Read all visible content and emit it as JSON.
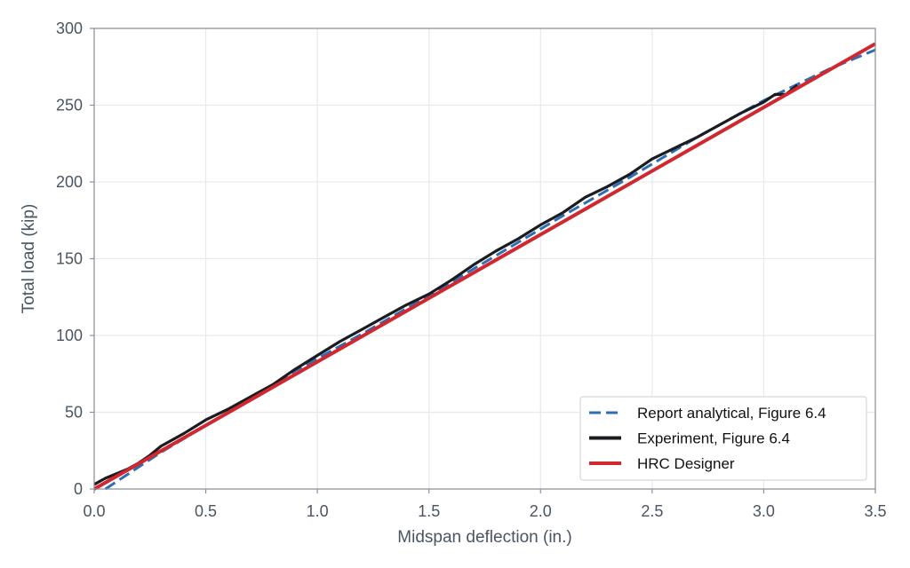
{
  "chart_data": {
    "type": "line",
    "title": "",
    "xlabel": "Midspan deflection (in.)",
    "ylabel": "Total load (kip)",
    "xlim": [
      0,
      3.5
    ],
    "ylim": [
      0,
      300
    ],
    "x_ticks": [
      "0.0",
      "0.5",
      "1.0",
      "1.5",
      "2.0",
      "2.5",
      "3.0",
      "3.5"
    ],
    "y_ticks": [
      "0",
      "50",
      "100",
      "150",
      "200",
      "250",
      "300"
    ],
    "grid": true,
    "legend_position": "bottom-right",
    "series": [
      {
        "name": "Report analytical, Figure 6.4",
        "color": "#2f6db5",
        "style": "dashed",
        "x": [
          0.05,
          0.3,
          0.6,
          0.9,
          1.2,
          1.5,
          1.8,
          2.1,
          2.4,
          2.7,
          3.0,
          3.3,
          3.5
        ],
        "y": [
          0,
          24,
          50,
          77,
          101,
          126,
          152,
          178,
          203,
          229,
          253,
          274,
          286
        ]
      },
      {
        "name": "Experiment, Figure 6.4",
        "color": "#1a1c20",
        "style": "solid",
        "x": [
          0.0,
          0.05,
          0.1,
          0.15,
          0.2,
          0.25,
          0.3,
          0.4,
          0.5,
          0.6,
          0.7,
          0.8,
          0.9,
          1.0,
          1.1,
          1.2,
          1.3,
          1.4,
          1.5,
          1.6,
          1.7,
          1.8,
          1.9,
          2.0,
          2.1,
          2.2,
          2.3,
          2.4,
          2.5,
          2.6,
          2.7,
          2.8,
          2.9,
          3.0,
          3.05,
          3.1,
          3.15
        ],
        "y": [
          3,
          7,
          10,
          13,
          17,
          22,
          28,
          36,
          45,
          52,
          60,
          68,
          78,
          87,
          96,
          104,
          112,
          120,
          127,
          136,
          146,
          155,
          163,
          172,
          180,
          190,
          197,
          205,
          215,
          222,
          229,
          237,
          245,
          252,
          257,
          257,
          263
        ]
      },
      {
        "name": "HRC Designer",
        "color": "#d0282e",
        "style": "solid",
        "x": [
          0.0,
          3.5
        ],
        "y": [
          0,
          290
        ]
      }
    ]
  }
}
